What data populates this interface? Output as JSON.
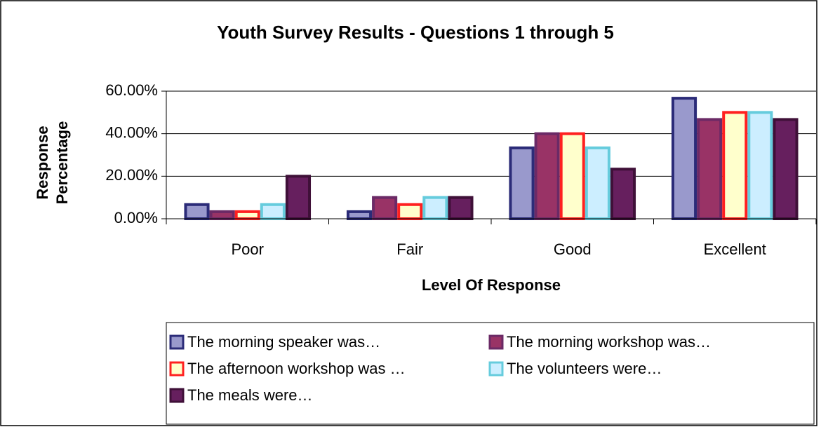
{
  "chart_data": {
    "type": "bar",
    "title": "Youth Survey Results - Questions 1 through 5",
    "y_label": "Response Percentage",
    "x_label": "Level Of Response",
    "categories": [
      "Poor",
      "Fair",
      "Good",
      "Excellent"
    ],
    "series": [
      {
        "name": "The morning speaker was…",
        "color": "#9999cc",
        "border_color": "#2b2b78",
        "values": [
          6.67,
          3.33,
          33.33,
          56.67
        ]
      },
      {
        "name": "The morning workshop was…",
        "color": "#993366",
        "border_color": "#6b2a66",
        "values": [
          3.33,
          10,
          40,
          46.67
        ]
      },
      {
        "name": "The afternoon workshop was …",
        "color": "#ffffcc",
        "border_color": "#ff2020",
        "values": [
          3.33,
          6.67,
          40,
          50
        ]
      },
      {
        "name": "The volunteers were…",
        "color": "#cceeff",
        "border_color": "#66ccdd",
        "values": [
          6.67,
          10,
          33.33,
          50
        ]
      },
      {
        "name": "The meals were…",
        "color": "#661f5e",
        "border_color": "#3f1038",
        "values": [
          20,
          10,
          23.33,
          46.67
        ]
      }
    ],
    "ylim": [
      0,
      60
    ],
    "yticks": [
      {
        "value": 0,
        "label": "0.00%"
      },
      {
        "value": 20,
        "label": "20.00%"
      },
      {
        "value": 40,
        "label": "40.00%"
      },
      {
        "value": 60,
        "label": "60.00%"
      }
    ],
    "grid": true,
    "legend": "bottom"
  }
}
